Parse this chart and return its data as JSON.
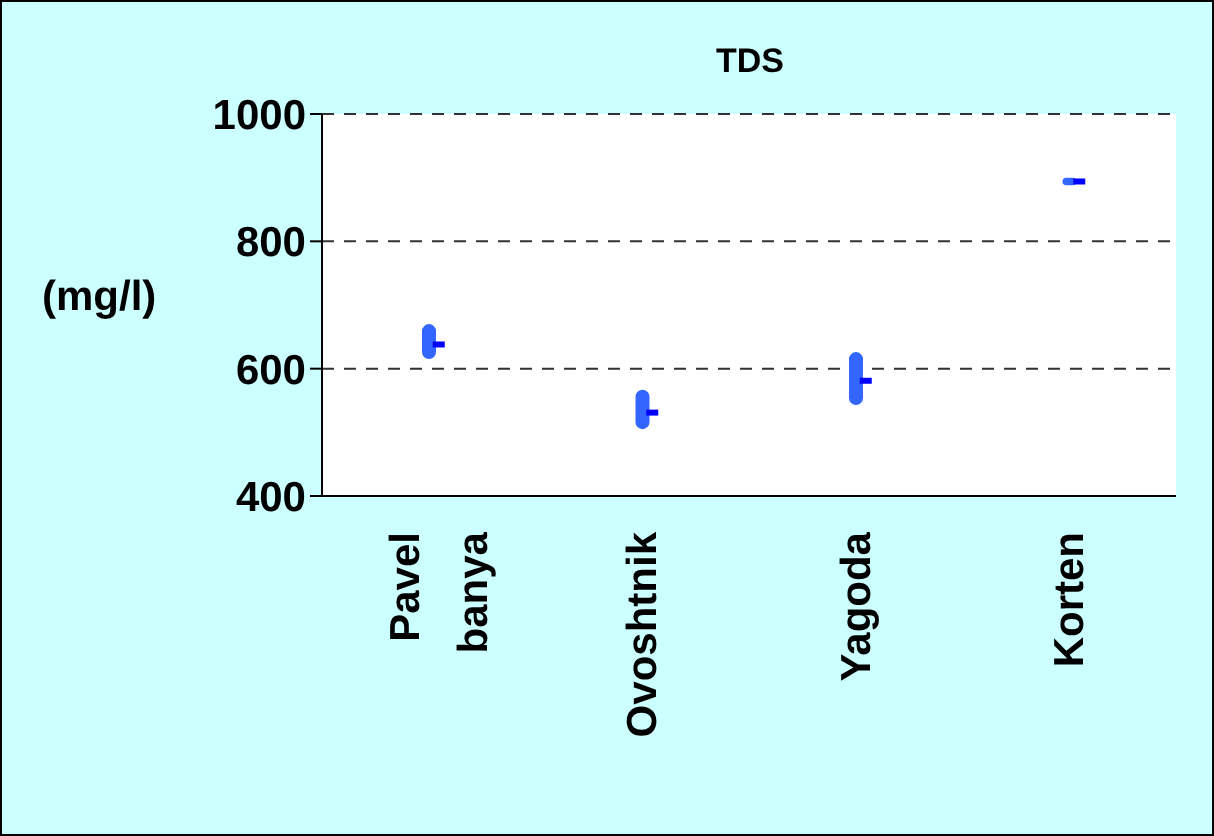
{
  "chart_data": {
    "type": "bar",
    "title": "TDS",
    "ylabel": "(mg/l)",
    "categories": [
      "Pavel banya",
      "Ovoshtnik",
      "Yagoda",
      "Korten"
    ],
    "series": [
      {
        "color": "#3366ff",
        "base": [
          615,
          505,
          543,
          888
        ],
        "values": [
          55,
          62,
          83,
          12
        ]
      },
      {
        "type": "scatter",
        "color": "#0000ff",
        "x": [
          "Pavel banya",
          "Ovoshtnik",
          "Yagoda",
          "Korten"
        ],
        "values": [
          638,
          531,
          581,
          894
        ],
        "marker": "square"
      }
    ],
    "ylim": [
      400,
      1000
    ],
    "yticks": [
      400,
      600,
      800,
      1000
    ],
    "grid": "y",
    "line_style": "dashed"
  }
}
